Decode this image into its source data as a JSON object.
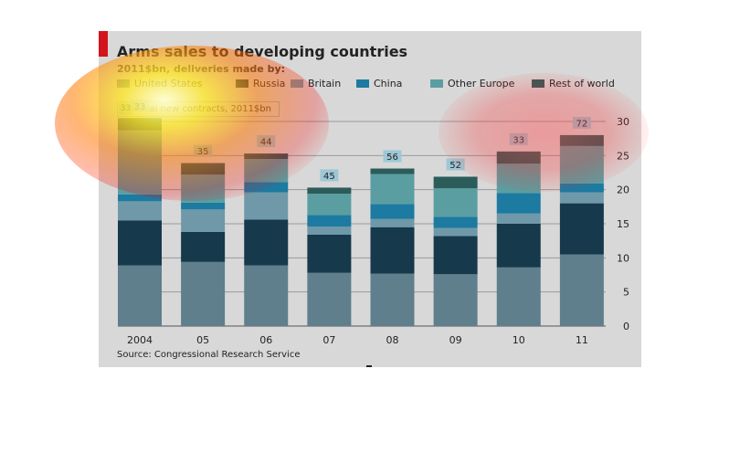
{
  "header": {
    "title": "Arms sales to developing countries",
    "subtitle": "2011$bn, deliveries made by:"
  },
  "note": {
    "badge": "33",
    "text": "Total new contracts, 2011$bn"
  },
  "source": "Source: Congressional Research Service",
  "chart_data": {
    "type": "bar",
    "stacked": true,
    "categories": [
      "2004",
      "05",
      "06",
      "07",
      "08",
      "09",
      "10",
      "11"
    ],
    "ylim": [
      0,
      30
    ],
    "yticks": [
      0,
      5,
      10,
      15,
      20,
      25,
      30
    ],
    "y_axis_side": "right",
    "grid": true,
    "legend_placement": "top",
    "series": [
      {
        "name": "United States",
        "color": "#5e7f8b",
        "values": [
          8.9,
          9.4,
          8.9,
          7.8,
          7.7,
          7.6,
          8.6,
          10.5
        ]
      },
      {
        "name": "Russia",
        "color": "#16394c",
        "values": [
          6.6,
          4.4,
          6.7,
          5.6,
          6.8,
          5.6,
          6.4,
          7.5
        ]
      },
      {
        "name": "Britain",
        "color": "#6f99a8",
        "values": [
          2.8,
          3.3,
          4.0,
          1.2,
          1.2,
          1.2,
          1.5,
          1.6
        ]
      },
      {
        "name": "China",
        "color": "#1d7aa1",
        "values": [
          1.0,
          1.0,
          1.5,
          1.7,
          2.2,
          1.6,
          3.0,
          1.3
        ]
      },
      {
        "name": "Other Europe",
        "color": "#5b9ea1",
        "values": [
          9.4,
          4.1,
          3.4,
          3.1,
          4.4,
          4.2,
          4.3,
          5.5
        ]
      },
      {
        "name": "Rest of world",
        "color": "#2b5c5a",
        "values": [
          1.8,
          1.7,
          0.8,
          0.9,
          0.8,
          1.7,
          1.8,
          1.6
        ]
      }
    ],
    "total_new_contracts": [
      33,
      35,
      44,
      45,
      56,
      52,
      33,
      72
    ]
  }
}
